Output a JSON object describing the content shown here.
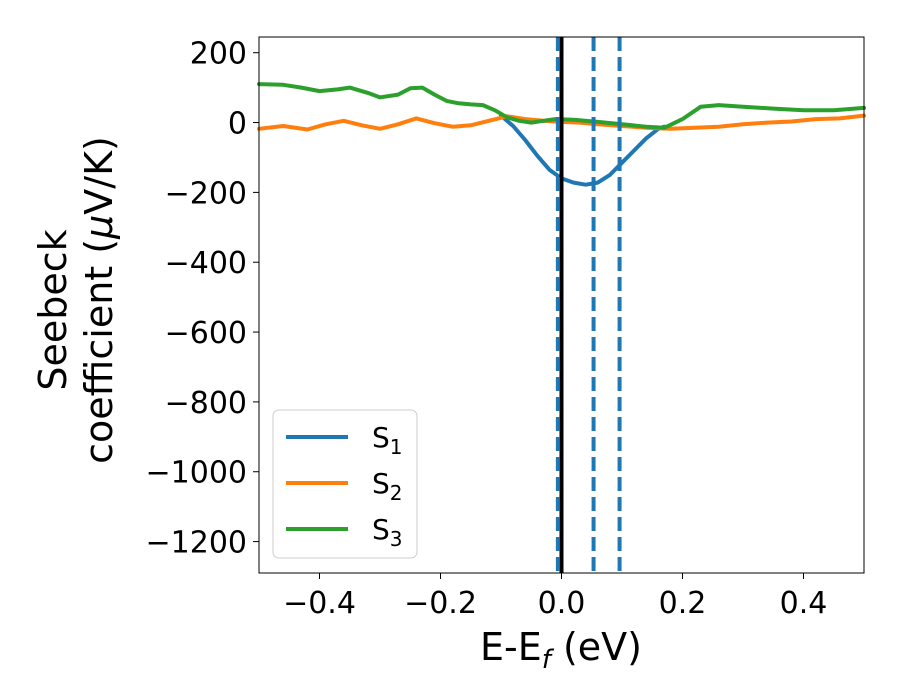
{
  "chart_data": {
    "type": "line",
    "xlabel_main": "E-E",
    "xlabel_sub": "f",
    "xlabel_unit": " (eV)",
    "ylabel_line1": "Seebeck",
    "ylabel_line2": "coefficient  (",
    "ylabel_mu": "μ",
    "ylabel_unit": "V/K)",
    "xlim": [
      -0.5,
      0.5
    ],
    "ylim": [
      -1290,
      245
    ],
    "xticks": [
      -0.4,
      -0.2,
      0.0,
      0.2,
      0.4
    ],
    "xtick_labels": [
      "−0.4",
      "−0.2",
      "0.0",
      "0.2",
      "0.4"
    ],
    "yticks": [
      200,
      0,
      -200,
      -400,
      -600,
      -800,
      -1000,
      -1200
    ],
    "ytick_labels": [
      "200",
      "0",
      "−200",
      "−400",
      "−600",
      "−800",
      "−1000",
      "−1200"
    ],
    "legend_position": "lower-left",
    "vertical_lines": [
      {
        "x": 0.0,
        "style": "solid",
        "color": "#000000"
      },
      {
        "x": -0.006,
        "style": "dashed",
        "color": "#1f77b4"
      },
      {
        "x": 0.053,
        "style": "dashed",
        "color": "#1f77b4"
      },
      {
        "x": 0.096,
        "style": "dashed",
        "color": "#1f77b4"
      }
    ],
    "series": [
      {
        "name": "S",
        "sub": "1",
        "color": "#1f77b4",
        "x": [
          -0.1,
          -0.08,
          -0.06,
          -0.04,
          -0.02,
          0.0,
          0.02,
          0.04,
          0.06,
          0.08,
          0.1,
          0.12,
          0.14,
          0.16,
          0.17
        ],
        "y": [
          20,
          -10,
          -50,
          -95,
          -135,
          -160,
          -172,
          -178,
          -172,
          -150,
          -115,
          -80,
          -45,
          -18,
          -12
        ]
      },
      {
        "name": "S",
        "sub": "2",
        "color": "#ff7f0e",
        "x": [
          -0.5,
          -0.46,
          -0.42,
          -0.39,
          -0.36,
          -0.33,
          -0.3,
          -0.27,
          -0.24,
          -0.21,
          -0.18,
          -0.15,
          -0.12,
          -0.09,
          -0.06,
          -0.03,
          0.0,
          0.03,
          0.06,
          0.1,
          0.14,
          0.18,
          0.22,
          0.26,
          0.3,
          0.34,
          0.38,
          0.42,
          0.46,
          0.5
        ],
        "y": [
          -18,
          -10,
          -20,
          -5,
          5,
          -8,
          -18,
          -5,
          12,
          -2,
          -12,
          -8,
          5,
          18,
          10,
          5,
          2,
          0,
          -5,
          -10,
          -15,
          -18,
          -15,
          -12,
          -5,
          0,
          3,
          10,
          12,
          20
        ]
      },
      {
        "name": "S",
        "sub": "3",
        "color": "#2ca02c",
        "x": [
          -0.5,
          -0.46,
          -0.43,
          -0.4,
          -0.37,
          -0.35,
          -0.32,
          -0.3,
          -0.27,
          -0.25,
          -0.23,
          -0.21,
          -0.19,
          -0.17,
          -0.15,
          -0.13,
          -0.11,
          -0.09,
          -0.07,
          -0.05,
          -0.03,
          -0.01,
          0.02,
          0.06,
          0.1,
          0.14,
          0.17,
          0.2,
          0.23,
          0.26,
          0.3,
          0.35,
          0.4,
          0.45,
          0.5
        ],
        "y": [
          110,
          108,
          100,
          90,
          95,
          100,
          85,
          72,
          80,
          98,
          100,
          80,
          62,
          55,
          52,
          50,
          35,
          15,
          5,
          0,
          5,
          10,
          8,
          2,
          -5,
          -12,
          -15,
          10,
          45,
          50,
          45,
          40,
          35,
          35,
          42
        ]
      }
    ]
  }
}
